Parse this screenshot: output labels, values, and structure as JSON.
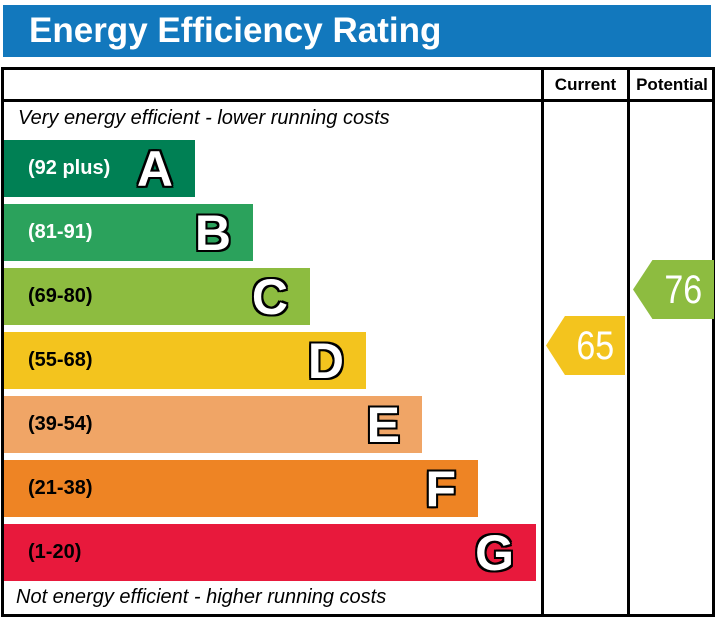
{
  "title": "Energy Efficiency Rating",
  "header": {
    "current_label": "Current",
    "potential_label": "Potential"
  },
  "notes": {
    "top": "Very energy efficient - lower running costs",
    "bottom": "Not energy efficient - higher running costs"
  },
  "bands": [
    {
      "letter": "A",
      "range_label": "(92 plus)",
      "min": 92,
      "max": 100,
      "color": "#008054",
      "label_color": "#ffffff"
    },
    {
      "letter": "B",
      "range_label": "(81-91)",
      "min": 81,
      "max": 91,
      "color": "#2ba25c",
      "label_color": "#ffffff"
    },
    {
      "letter": "C",
      "range_label": "(69-80)",
      "min": 69,
      "max": 80,
      "color": "#8dbc40",
      "label_color": "#000000"
    },
    {
      "letter": "D",
      "range_label": "(55-68)",
      "min": 55,
      "max": 68,
      "color": "#f3c41e",
      "label_color": "#000000"
    },
    {
      "letter": "E",
      "range_label": "(39-54)",
      "min": 39,
      "max": 54,
      "color": "#f0a566",
      "label_color": "#000000"
    },
    {
      "letter": "F",
      "range_label": "(21-38)",
      "min": 21,
      "max": 38,
      "color": "#ee8424",
      "label_color": "#000000"
    },
    {
      "letter": "G",
      "range_label": "(1-20)",
      "min": 1,
      "max": 20,
      "color": "#e8193c",
      "label_color": "#000000"
    }
  ],
  "ratings": {
    "current": {
      "value": "65"
    },
    "potential": {
      "value": "76"
    }
  },
  "colors": {
    "title_bar_blue": "#1278bd",
    "border_black": "#000000",
    "background": "#ffffff"
  },
  "chart_data": {
    "type": "bar",
    "title": "Energy Efficiency Rating",
    "orientation": "horizontal",
    "bands": [
      {
        "label": "A",
        "range": "92 plus"
      },
      {
        "label": "B",
        "range": "81-91"
      },
      {
        "label": "C",
        "range": "69-80"
      },
      {
        "label": "D",
        "range": "55-68"
      },
      {
        "label": "E",
        "range": "39-54"
      },
      {
        "label": "F",
        "range": "21-38"
      },
      {
        "label": "G",
        "range": "1-20"
      }
    ],
    "markers": [
      {
        "name": "Current",
        "value": 65,
        "band": "D"
      },
      {
        "name": "Potential",
        "value": 76,
        "band": "C"
      }
    ],
    "top_annotation": "Very energy efficient - lower running costs",
    "bottom_annotation": "Not energy efficient - higher running costs",
    "legend_position": "none",
    "grid": false
  }
}
